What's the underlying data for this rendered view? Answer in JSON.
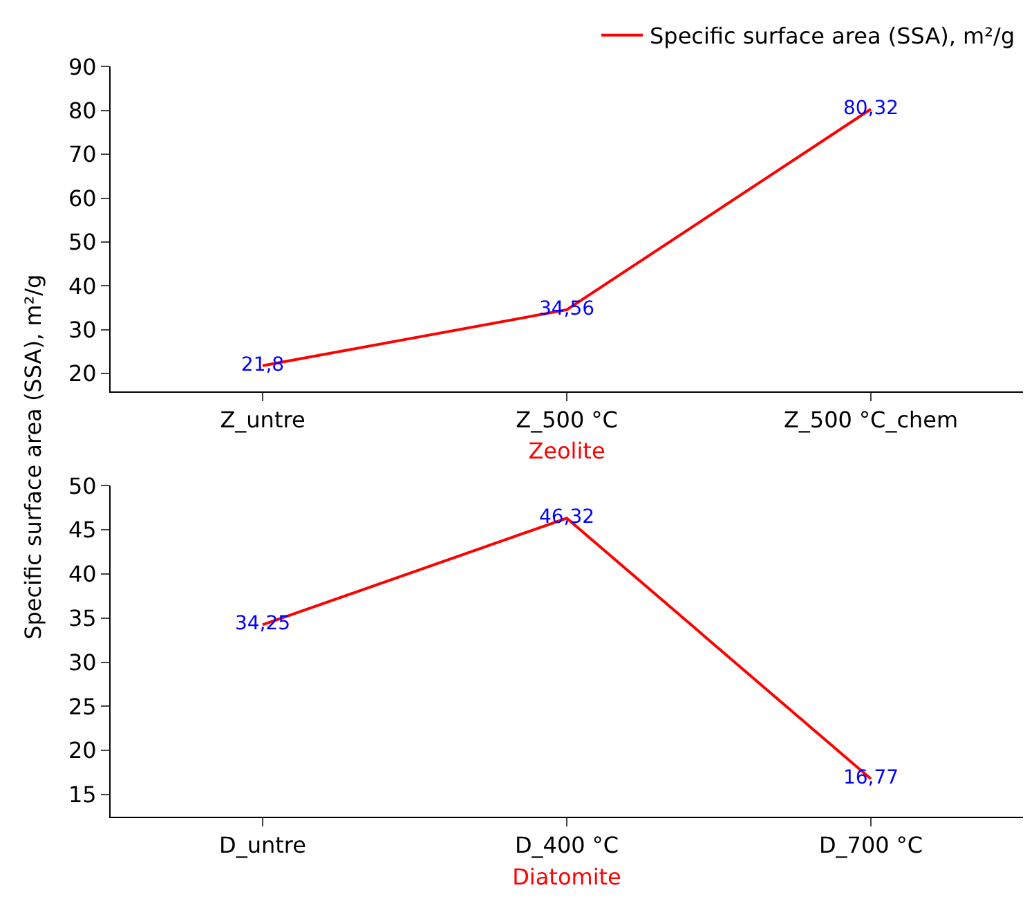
{
  "chart_data": [
    {
      "type": "line",
      "categories": [
        "Z_untre",
        "Z_500 °C",
        "Z_500 °C_chem"
      ],
      "xlabel": "Zeolite",
      "ylabel": "Specific surface area (SSA), m²/g",
      "legend": "top right",
      "series": [
        {
          "name": "Specific surface area (SSA), m²/g",
          "color": "#ff0000",
          "values": [
            21.8,
            34.56,
            80.32
          ],
          "value_labels": [
            "21,8",
            "34,56",
            "80,32"
          ]
        }
      ],
      "ylim": [
        16,
        90
      ],
      "yticks": [
        20,
        30,
        40,
        50,
        60,
        70,
        80,
        90
      ],
      "line_style": "solid"
    },
    {
      "type": "line",
      "categories": [
        "D_untre",
        "D_400 °C",
        "D_700 °C"
      ],
      "xlabel": "Diatomite",
      "series": [
        {
          "color": "#ff0000",
          "values": [
            34.25,
            46.32,
            16.77
          ],
          "value_labels": [
            "34,25",
            "46,32",
            "16,77"
          ]
        }
      ],
      "ylim": [
        12.5,
        50
      ],
      "yticks": [
        15,
        20,
        25,
        30,
        35,
        40,
        45,
        50
      ],
      "line_style": "solid"
    }
  ]
}
